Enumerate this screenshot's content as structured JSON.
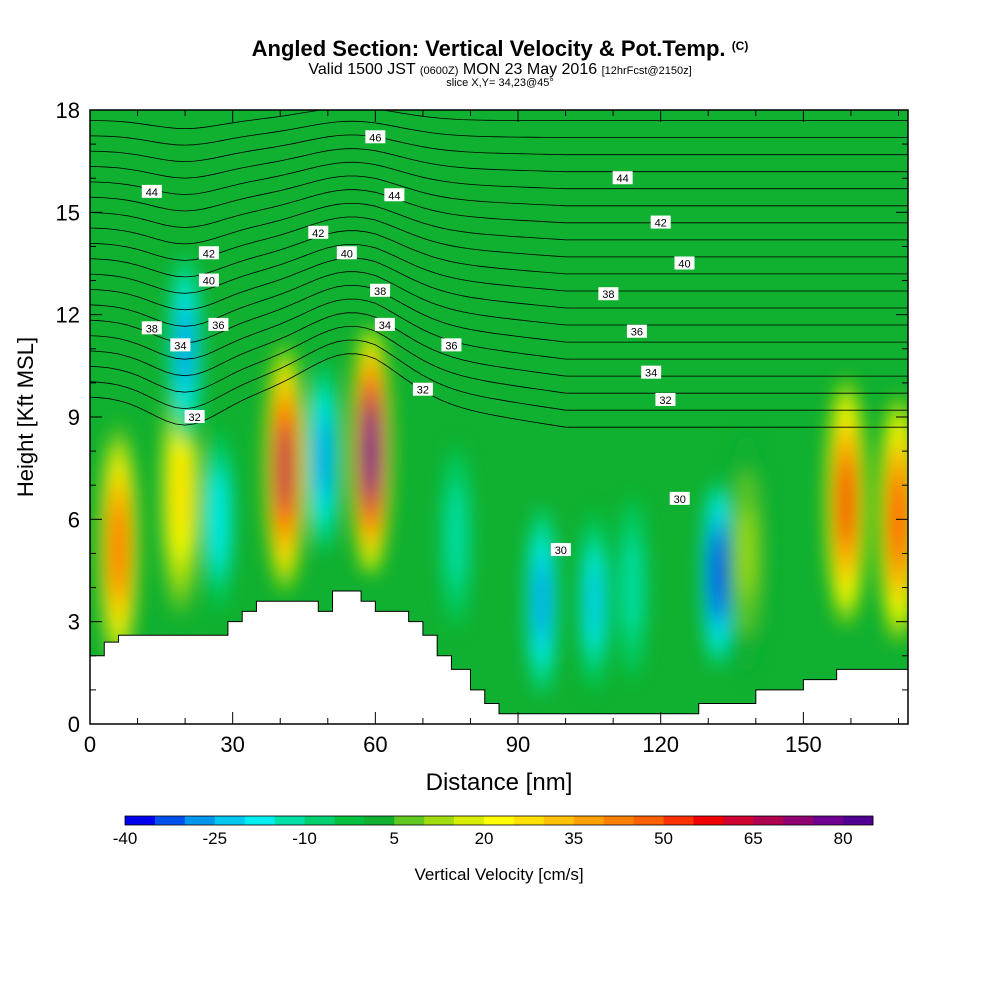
{
  "header": {
    "title": "Angled Section: Vertical Velocity & Pot.Temp.",
    "title_unit": "(C)",
    "valid_prefix": "Valid 1500 JST",
    "valid_utc": "(0600Z)",
    "valid_date": "MON 23 May 2016",
    "forecast": "[12hrFcst@2150z]",
    "slice": "slice X,Y= 34,23@45°"
  },
  "chart_data": {
    "type": "heatmap",
    "xlabel": "Distance [nm]",
    "ylabel": "Height [Kft MSL]",
    "xlim": [
      0,
      172
    ],
    "ylim": [
      0,
      18
    ],
    "x_ticks": [
      0,
      30,
      60,
      90,
      120,
      150
    ],
    "y_ticks": [
      0,
      3,
      6,
      9,
      12,
      15,
      18
    ],
    "colorbar": {
      "label": "Vertical Velocity [cm/s]",
      "min": -40,
      "max": 85,
      "step": 5,
      "tick_labels": [
        -40,
        -25,
        -10,
        5,
        20,
        35,
        50,
        65,
        80
      ],
      "colors": [
        "#0000ee",
        "#0050ee",
        "#0096ee",
        "#00c8f0",
        "#00eef0",
        "#00e0a8",
        "#00d070",
        "#00c040",
        "#10b030",
        "#60c820",
        "#a0dc10",
        "#d8ee00",
        "#ffff00",
        "#ffe000",
        "#ffc000",
        "#ffa000",
        "#ff8000",
        "#ff6000",
        "#ff3000",
        "#f00000",
        "#d00030",
        "#b00050",
        "#900070",
        "#700090",
        "#500090"
      ]
    },
    "updraft_cores": [
      {
        "x": 6,
        "y": 5.2,
        "w": 45
      },
      {
        "x": 19,
        "y": 6.8,
        "w": 25
      },
      {
        "x": 27,
        "y": 6.0,
        "w": -20
      },
      {
        "x": 41,
        "y": 7.5,
        "w": 65
      },
      {
        "x": 49,
        "y": 7.8,
        "w": -30
      },
      {
        "x": 59,
        "y": 8.0,
        "w": 82
      },
      {
        "x": 77,
        "y": 5.5,
        "w": -15
      },
      {
        "x": 95,
        "y": 3.6,
        "w": -30
      },
      {
        "x": 106,
        "y": 3.6,
        "w": -25
      },
      {
        "x": 114,
        "y": 4.0,
        "w": -15
      },
      {
        "x": 132,
        "y": 4.4,
        "w": -38
      },
      {
        "x": 138,
        "y": 5.0,
        "w": 10
      },
      {
        "x": 159,
        "y": 6.5,
        "w": 55
      },
      {
        "x": 170,
        "y": 6.0,
        "w": 50
      },
      {
        "x": 20,
        "y": 11.0,
        "w": -30
      }
    ],
    "terrain": [
      [
        0,
        2.0
      ],
      [
        3,
        2.0
      ],
      [
        3,
        2.4
      ],
      [
        6,
        2.4
      ],
      [
        6,
        2.6
      ],
      [
        29,
        2.6
      ],
      [
        29,
        3.0
      ],
      [
        32,
        3.0
      ],
      [
        32,
        3.3
      ],
      [
        35,
        3.3
      ],
      [
        35,
        3.6
      ],
      [
        48,
        3.6
      ],
      [
        48,
        3.3
      ],
      [
        51,
        3.3
      ],
      [
        51,
        3.9
      ],
      [
        57,
        3.9
      ],
      [
        57,
        3.6
      ],
      [
        60,
        3.6
      ],
      [
        60,
        3.3
      ],
      [
        67,
        3.3
      ],
      [
        67,
        3.0
      ],
      [
        70,
        3.0
      ],
      [
        70,
        2.6
      ],
      [
        73,
        2.6
      ],
      [
        73,
        2.0
      ],
      [
        76,
        2.0
      ],
      [
        76,
        1.6
      ],
      [
        80,
        1.6
      ],
      [
        80,
        1.0
      ],
      [
        83,
        1.0
      ],
      [
        83,
        0.6
      ],
      [
        86,
        0.6
      ],
      [
        86,
        0.3
      ],
      [
        128,
        0.3
      ],
      [
        128,
        0.6
      ],
      [
        140,
        0.6
      ],
      [
        140,
        1.0
      ],
      [
        150,
        1.0
      ],
      [
        150,
        1.3
      ],
      [
        157,
        1.3
      ],
      [
        157,
        1.6
      ],
      [
        172,
        1.6
      ]
    ],
    "theta_contour_labels": [
      {
        "value": 46,
        "x": 60,
        "y": 17.2
      },
      {
        "value": 44,
        "x": 13,
        "y": 15.6
      },
      {
        "value": 44,
        "x": 64,
        "y": 15.5
      },
      {
        "value": 44,
        "x": 112,
        "y": 16.0
      },
      {
        "value": 42,
        "x": 25,
        "y": 13.8
      },
      {
        "value": 42,
        "x": 48,
        "y": 14.4
      },
      {
        "value": 42,
        "x": 120,
        "y": 14.7
      },
      {
        "value": 40,
        "x": 25,
        "y": 13.0
      },
      {
        "value": 40,
        "x": 54,
        "y": 13.8
      },
      {
        "value": 40,
        "x": 125,
        "y": 13.5
      },
      {
        "value": 38,
        "x": 13,
        "y": 11.6
      },
      {
        "value": 38,
        "x": 61,
        "y": 12.7
      },
      {
        "value": 38,
        "x": 109,
        "y": 12.6
      },
      {
        "value": 36,
        "x": 27,
        "y": 11.7
      },
      {
        "value": 36,
        "x": 76,
        "y": 11.1
      },
      {
        "value": 36,
        "x": 115,
        "y": 11.5
      },
      {
        "value": 34,
        "x": 19,
        "y": 11.1
      },
      {
        "value": 34,
        "x": 62,
        "y": 11.7
      },
      {
        "value": 34,
        "x": 118,
        "y": 10.3
      },
      {
        "value": 32,
        "x": 22,
        "y": 9.0
      },
      {
        "value": 32,
        "x": 70,
        "y": 9.8
      },
      {
        "value": 32,
        "x": 121,
        "y": 9.5
      },
      {
        "value": 30,
        "x": 99,
        "y": 5.1
      },
      {
        "value": 30,
        "x": 124,
        "y": 6.6
      }
    ]
  }
}
